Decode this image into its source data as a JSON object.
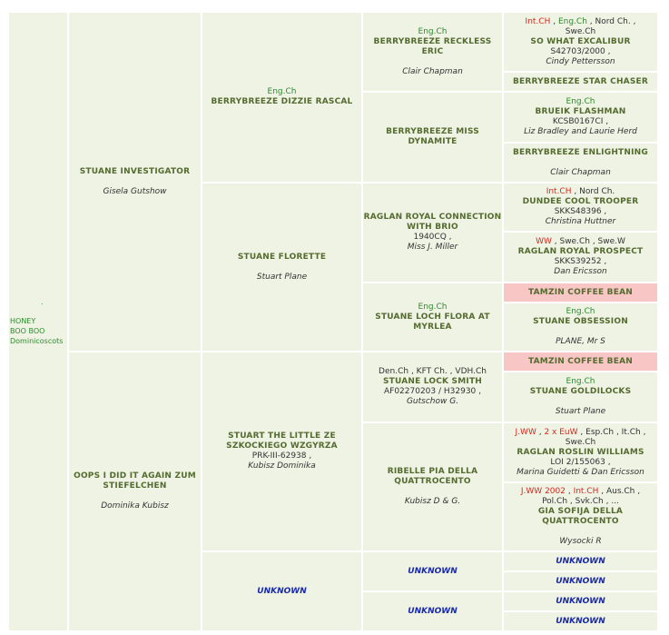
{
  "subject": {
    "dot": ".",
    "line1": "HONEY",
    "line2": "BOO BOO",
    "line3": "Dominicoscots"
  },
  "sire": {
    "name": "STUANE INVESTIGATOR",
    "owner": "Gisela Gutshow"
  },
  "dam": {
    "name": "OOPS I DID IT AGAIN ZUM STIEFELCHEN",
    "owner": "Dominika Kubisz"
  },
  "ss": {
    "title": "Eng.Ch",
    "name": "BERRYBREEZE DIZZIE RASCAL"
  },
  "sd": {
    "name": "STUANE FLORETTE",
    "owner": "Stuart Plane"
  },
  "ds": {
    "name": "STUART THE LITTLE ZE SZKOCKIEGO WZGYRZA",
    "reg": "PRK-III-62938 ,",
    "owner": "Kubisz Dominika"
  },
  "dd": {
    "name": "UNKNOWN"
  },
  "sss": {
    "title": "Eng.Ch",
    "name": "BERRYBREEZE RECKLESS ERIC",
    "owner": "Clair Chapman"
  },
  "ssd": {
    "name": "BERRYBREEZE MISS DYNAMITE"
  },
  "sds": {
    "name": "RAGLAN ROYAL CONNECTION WITH BRIO",
    "reg": "1940CQ ,",
    "owner": "Miss J. Miller"
  },
  "sdd": {
    "title": "Eng.Ch",
    "name": "STUANE LOCH FLORA AT MYRLEA"
  },
  "dss": {
    "titles": [
      "Den.Ch",
      "KFT Ch.",
      "VDH.Ch"
    ],
    "name": "STUANE LOCK SMITH",
    "reg": "AF02270203 / H32930 ,",
    "owner": "Gutschow G."
  },
  "dsd": {
    "name": "RIBELLE PIA DELLA QUATTROCENTO",
    "owner": "Kubisz D & G."
  },
  "dds": {
    "name": "UNKNOWN"
  },
  "ddd": {
    "name": "UNKNOWN"
  },
  "g1": {
    "t1": "Int.CH",
    "t2": "Eng.Ch",
    "t3": "Nord Ch.",
    "t4": "Swe.Ch",
    "name": "SO WHAT EXCALIBUR",
    "reg": "S42703/2000 ,",
    "owner": "Cindy Pettersson"
  },
  "g2": {
    "name": "BERRYBREEZE STAR CHASER"
  },
  "g3": {
    "title": "Eng.Ch",
    "name": "BRUEIK FLASHMAN",
    "reg": "KCSB0167CI ,",
    "owner": "Liz Bradley and Laurie Herd"
  },
  "g4": {
    "name": "BERRYBREEZE ENLIGHTNING",
    "owner": "Clair Chapman"
  },
  "g5": {
    "t1": "Int.CH",
    "t2": "Nord Ch.",
    "name": "DUNDEE COOL TROOPER",
    "reg": "SKKS48396 ,",
    "owner": "Christina Huttner"
  },
  "g6": {
    "t1": "WW",
    "t2": "Swe.Ch",
    "t3": "Swe.W",
    "name": "RAGLAN ROYAL PROSPECT",
    "reg": "SKKS39252 ,",
    "owner": "Dan Ericsson"
  },
  "g7": {
    "name": "TAMZIN COFFEE BEAN"
  },
  "g8": {
    "title": "Eng.Ch",
    "name": "STUANE OBSESSION",
    "owner": "PLANE, Mr S"
  },
  "g9": {
    "name": "TAMZIN COFFEE BEAN"
  },
  "g10": {
    "title": "Eng.Ch",
    "name": "STUANE GOLDILOCKS",
    "owner": "Stuart Plane"
  },
  "g11": {
    "t1": "J.WW",
    "t2": "2 x EuW",
    "t3": "Esp.Ch",
    "t4": "It.Ch",
    "t5": "Swe.Ch",
    "name": "RAGLAN ROSLIN WILLIAMS",
    "reg": "LOI 2/155063 ,",
    "owner": "Marina Guidetti & Dan Ericsson"
  },
  "g12": {
    "t1": "J.WW 2002",
    "t2": "Int.CH",
    "t3": "Aus.Ch",
    "t4": "Pol.Ch",
    "t5": "Svk.Ch",
    "t6": "...",
    "name": "GIA SOFIJA DELLA QUATTROCENTO",
    "owner": "Wysocki R"
  },
  "g13": {
    "name": "UNKNOWN"
  },
  "g14": {
    "name": "UNKNOWN"
  },
  "g15": {
    "name": "UNKNOWN"
  },
  "g16": {
    "name": "UNKNOWN"
  },
  "colors": {
    "background": "#eef3e4",
    "name": "#556b2f",
    "title_green": "#2f8a2f",
    "title_red": "#d42a1e",
    "unknown": "#1a2aa8",
    "highlight": "#f9c6c6"
  }
}
